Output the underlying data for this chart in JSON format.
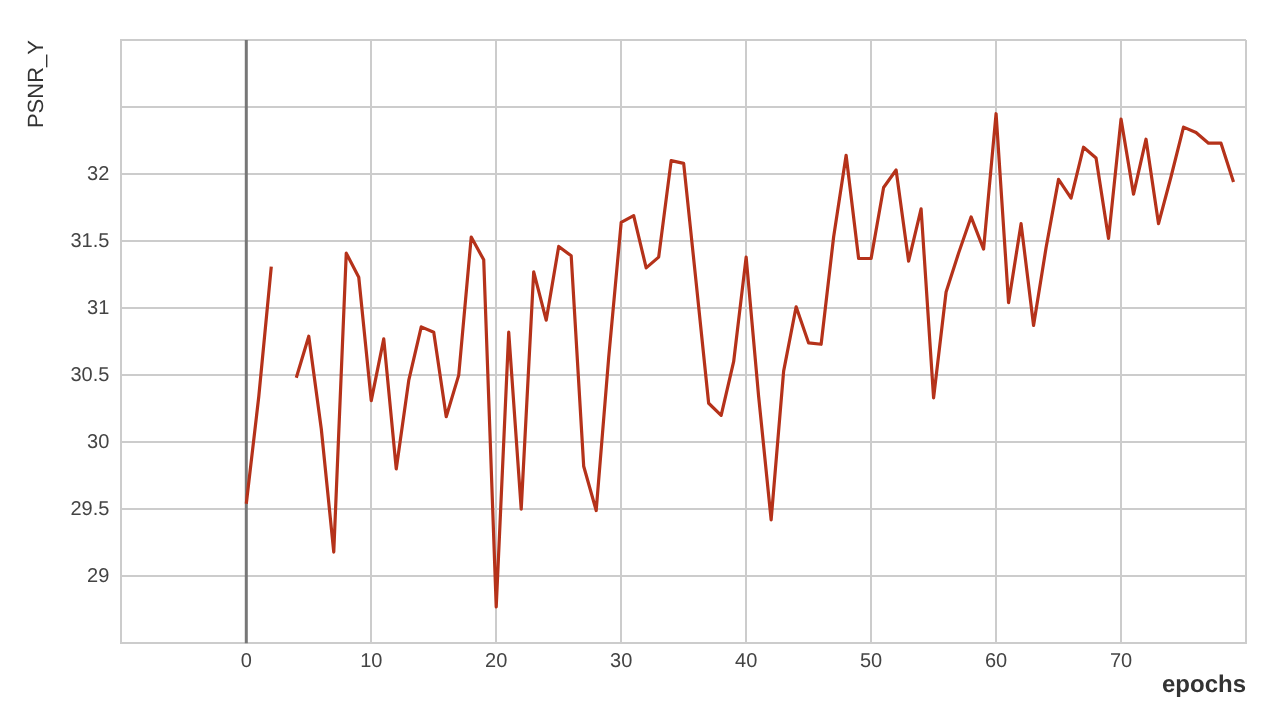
{
  "chart_data": {
    "type": "line",
    "xlabel": "epochs",
    "ylabel": "PSNR_Y",
    "x": [
      0,
      1,
      2,
      3,
      4,
      5,
      6,
      7,
      8,
      9,
      10,
      11,
      12,
      13,
      14,
      15,
      16,
      17,
      18,
      19,
      20,
      21,
      22,
      23,
      24,
      25,
      26,
      27,
      28,
      29,
      30,
      31,
      32,
      33,
      34,
      35,
      36,
      37,
      38,
      39,
      40,
      41,
      42,
      43,
      44,
      45,
      46,
      47,
      48,
      49,
      50,
      51,
      52,
      53,
      54,
      55,
      56,
      57,
      58,
      59,
      60,
      61,
      62,
      63,
      64,
      65,
      66,
      67,
      68,
      69,
      70,
      71,
      72,
      73,
      74,
      75,
      76,
      77,
      78,
      79
    ],
    "series": [
      {
        "color": "#b5321a",
        "values": [
          29.54,
          30.34,
          31.31,
          null,
          30.48,
          30.79,
          30.1,
          29.18,
          31.41,
          31.23,
          30.31,
          30.77,
          29.8,
          30.46,
          30.86,
          30.82,
          30.19,
          30.5,
          31.53,
          31.36,
          28.77,
          30.82,
          29.5,
          31.27,
          30.91,
          31.46,
          31.39,
          29.82,
          29.49,
          30.63,
          31.64,
          31.69,
          31.3,
          31.38,
          32.1,
          32.08,
          31.19,
          30.29,
          30.2,
          30.6,
          31.38,
          30.34,
          29.42,
          30.53,
          31.01,
          30.74,
          30.73,
          31.53,
          32.14,
          31.37,
          31.37,
          31.9,
          32.03,
          31.35,
          31.74,
          30.33,
          31.12,
          31.41,
          31.68,
          31.44,
          32.45,
          31.04,
          31.63,
          30.87,
          31.45,
          31.96,
          31.82,
          32.2,
          32.12,
          31.52,
          32.41,
          31.85,
          32.26,
          31.63,
          31.98,
          32.35,
          32.31,
          32.23,
          32.23,
          31.94
        ]
      }
    ],
    "xlim": [
      -10,
      80
    ],
    "xticks": [
      {
        "value": -10,
        "label": null
      },
      0,
      10,
      20,
      30,
      40,
      50,
      60,
      70,
      {
        "value": 80,
        "label": null
      }
    ],
    "ylim": [
      28.5,
      33
    ],
    "yticks": [
      {
        "value": 28.5,
        "label": null
      },
      29,
      29.5,
      30,
      30.5,
      31,
      31.5,
      32,
      {
        "value": 32.5,
        "label": null
      },
      {
        "value": 33,
        "label": null
      }
    ],
    "grid": true,
    "legend": false,
    "marker": "none",
    "line_style": "solid",
    "ref_lines": [
      {
        "axis": "x",
        "value": 0,
        "color": "#777777"
      }
    ]
  }
}
